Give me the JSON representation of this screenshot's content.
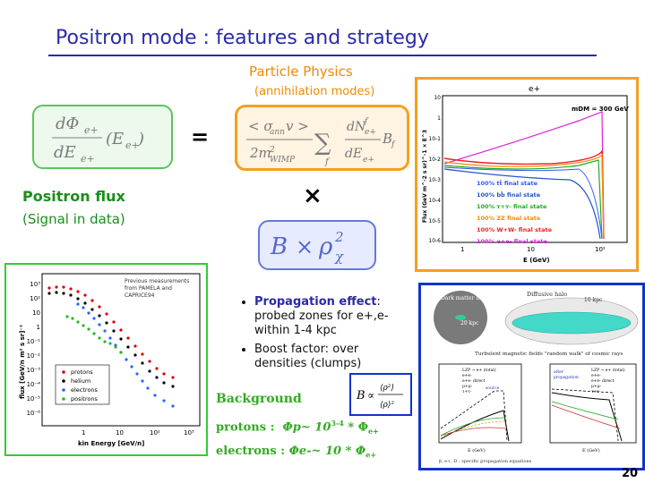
{
  "slide": {
    "title": "Positron mode : features and strategy",
    "page_number": "20"
  },
  "particle_physics": {
    "title": "Particle Physics",
    "subtitle": "(annihilation modes)"
  },
  "positron_flux": {
    "label": "Positron flux",
    "sublabel": "(Signal in data)"
  },
  "equation": {
    "equals": "=",
    "times": "×"
  },
  "bullets": [
    {
      "head": "Propagation effect",
      "colon": ":",
      "text": "probed zones for e+,e- within 1-4 kpc"
    },
    {
      "text": "Boost factor: over densities (clumps)"
    }
  ],
  "background": {
    "title": "Background",
    "protons_label": "protons :",
    "protons_formula": "Φp~ 10",
    "protons_exp": "3-4",
    "protons_tail": " * Φ",
    "protons_sub": "e+",
    "electrons_label": "electrons :",
    "electrons_formula": "Φe-~ 10  * Φ",
    "electrons_sub": "e+"
  },
  "plot_annihilation": {
    "title": "e+",
    "mdm_label": "mDM = 300 GeV",
    "ylabel": "Flux (GeV m^-2 s sr)^-1 × E^3",
    "xlabel": "E (GeV)",
    "yticks": [
      "10",
      "1",
      "10-1",
      "10-2",
      "10-3",
      "10-4",
      "10-5",
      "10-6"
    ],
    "xticks": [
      "1",
      "10",
      "10²"
    ],
    "legend": [
      {
        "label": "100% tt̄ final state",
        "color": "#3355ff"
      },
      {
        "label": "100% bb̄ final state",
        "color": "#2255cc"
      },
      {
        "label": "100% τ+τ- final state",
        "color": "#22aa22"
      },
      {
        "label": "100% ZZ final state",
        "color": "#ff8800"
      },
      {
        "label": "100% W+W- final state",
        "color": "#ee2222"
      },
      {
        "label": "100% e+e- final state",
        "color": "#dd22dd"
      }
    ]
  },
  "plot_measurements": {
    "note_lines": [
      "Previous measurements",
      "from PAMELA and",
      "CAPRICE94"
    ],
    "ylabel": "flux [GeV/n m² s sr]⁻¹",
    "xlabel": "kin Energy [GeV/n]",
    "yticks": [
      "10³",
      "10²",
      "10",
      "1",
      "10⁻¹",
      "10⁻²",
      "10⁻³",
      "10⁻⁴",
      "10⁻⁵",
      "10⁻⁶"
    ],
    "xticks": [
      "1",
      "10",
      "10²",
      "10³"
    ],
    "legend": [
      {
        "label": "protons",
        "color": "#dd0000"
      },
      {
        "label": "helium",
        "color": "#000000"
      },
      {
        "label": "electrons",
        "color": "#2266ff"
      },
      {
        "label": "positrons",
        "color": "#22bb22"
      }
    ]
  },
  "plot_propagation": {
    "dm_halo": "Dark matter halo",
    "diffusive_halo": "Diffusive halo",
    "kpc20": "20 kpc",
    "kpc10": "10 kpc",
    "turbulent": "Turbulent magnetic fields \"random walk\" of cosmic rays",
    "left_legend": [
      "LZP → e+ (total)",
      "e+e-",
      "e+e- direct",
      "μ+μ-",
      "τ+τ-"
    ],
    "source_label": "source",
    "after_prop": [
      "after",
      "propagation"
    ],
    "right_legend": [
      "LZP → e+ (total)",
      "e+e-",
      "e+e- direct",
      "μ+μ-",
      "τ+τ-"
    ],
    "xlabel": "E (GeV)",
    "footer": "β, e+, D : specific propagation equations"
  }
}
